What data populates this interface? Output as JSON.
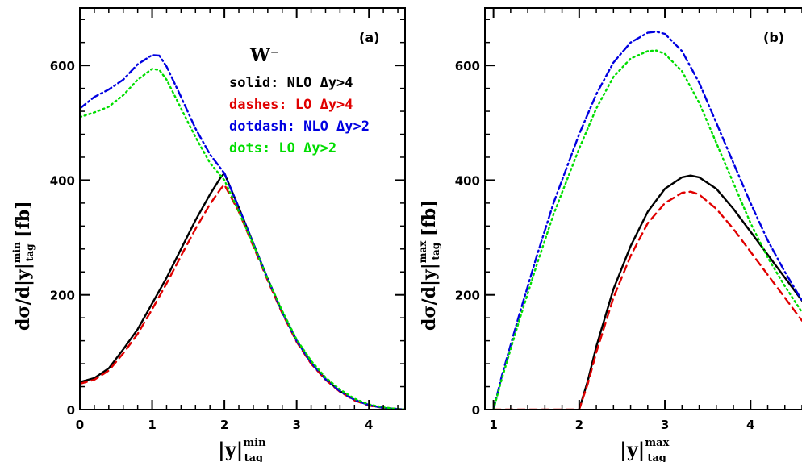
{
  "chart_data": [
    {
      "type": "line",
      "panel_tag": "(a)",
      "process_label": "W⁻",
      "xlabel": {
        "base": "|y|",
        "sup": "min",
        "sub": "tag"
      },
      "ylabel": {
        "prefix": "dσ/d|y|",
        "sup": "min",
        "sub": "tag",
        "suffix": " [fb]"
      },
      "xlim": [
        0,
        4.5
      ],
      "ylim": [
        0,
        700
      ],
      "xticks": [
        0,
        1,
        2,
        3,
        4
      ],
      "yticks": [
        0,
        200,
        400,
        600
      ],
      "legend": [
        {
          "text": "solid: NLO Δy>4",
          "color": "#000000"
        },
        {
          "text": "dashes: LO Δy>4",
          "color": "#e00000"
        },
        {
          "text": "dotdash: NLO Δy>2",
          "color": "#0000e0"
        },
        {
          "text": "dots: LO Δy>2",
          "color": "#00dd00"
        }
      ],
      "series": [
        {
          "color": "#000000",
          "dash": "none",
          "x": [
            0,
            0.2,
            0.4,
            0.6,
            0.8,
            1.0,
            1.2,
            1.4,
            1.6,
            1.8,
            1.95,
            2.0,
            2.2,
            2.4,
            2.6,
            2.8,
            3.0,
            3.2,
            3.4,
            3.6,
            3.8,
            4.0,
            4.2,
            4.4,
            4.5
          ],
          "y": [
            48,
            55,
            72,
            105,
            140,
            185,
            230,
            280,
            330,
            375,
            405,
            412,
            352,
            290,
            228,
            170,
            120,
            82,
            53,
            32,
            17,
            8,
            3,
            1,
            0
          ]
        },
        {
          "color": "#e00000",
          "dash": "9,6",
          "x": [
            0,
            0.2,
            0.4,
            0.6,
            0.8,
            1.0,
            1.2,
            1.4,
            1.6,
            1.8,
            1.95,
            2.0,
            2.2,
            2.4,
            2.6,
            2.8,
            3.0,
            3.2,
            3.4,
            3.6,
            3.8,
            4.0,
            4.2,
            4.4,
            4.5
          ],
          "y": [
            45,
            52,
            68,
            98,
            132,
            175,
            220,
            268,
            315,
            358,
            385,
            392,
            345,
            285,
            225,
            168,
            118,
            80,
            52,
            31,
            16,
            7,
            3,
            1,
            0
          ]
        },
        {
          "color": "#0000e0",
          "dash": "9,4,2,4",
          "x": [
            0,
            0.2,
            0.4,
            0.6,
            0.8,
            1.0,
            1.1,
            1.2,
            1.4,
            1.6,
            1.8,
            2.0,
            2.2,
            2.4,
            2.6,
            2.8,
            3.0,
            3.2,
            3.4,
            3.6,
            3.8,
            4.0,
            4.2,
            4.4,
            4.5
          ],
          "y": [
            525,
            545,
            558,
            575,
            602,
            618,
            617,
            598,
            545,
            490,
            445,
            412,
            352,
            290,
            228,
            170,
            120,
            82,
            53,
            32,
            17,
            8,
            3,
            1,
            0
          ]
        },
        {
          "color": "#00dd00",
          "dash": "2,4",
          "x": [
            0,
            0.2,
            0.4,
            0.6,
            0.8,
            1.0,
            1.1,
            1.2,
            1.4,
            1.6,
            1.8,
            2.0,
            2.2,
            2.4,
            2.6,
            2.8,
            3.0,
            3.2,
            3.4,
            3.6,
            3.8,
            4.0,
            4.2,
            4.4,
            4.5
          ],
          "y": [
            510,
            518,
            528,
            548,
            575,
            594,
            592,
            575,
            525,
            475,
            430,
            400,
            345,
            288,
            228,
            172,
            122,
            85,
            56,
            35,
            19,
            9,
            4,
            1,
            0
          ]
        }
      ]
    },
    {
      "type": "line",
      "panel_tag": "(b)",
      "xlabel": {
        "base": "|y|",
        "sup": "max",
        "sub": "tag"
      },
      "ylabel": {
        "prefix": "dσ/d|y|",
        "sup": "max",
        "sub": "tag",
        "suffix": " [fb]"
      },
      "xlim": [
        0.9,
        4.6
      ],
      "ylim": [
        0,
        700
      ],
      "xticks": [
        1,
        2,
        3,
        4
      ],
      "yticks": [
        0,
        200,
        400,
        600
      ],
      "series": [
        {
          "color": "#000000",
          "dash": "none",
          "x": [
            2.0,
            2.1,
            2.2,
            2.4,
            2.6,
            2.8,
            3.0,
            3.2,
            3.3,
            3.4,
            3.6,
            3.8,
            4.0,
            4.2,
            4.4,
            4.6
          ],
          "y": [
            0,
            50,
            110,
            210,
            285,
            345,
            385,
            405,
            408,
            405,
            385,
            350,
            310,
            270,
            230,
            190
          ]
        },
        {
          "color": "#e00000",
          "dash": "9,6",
          "x": [
            1.0,
            1.5,
            2.0,
            2.1,
            2.2,
            2.4,
            2.6,
            2.8,
            3.0,
            3.2,
            3.3,
            3.4,
            3.6,
            3.8,
            4.0,
            4.2,
            4.4,
            4.6
          ],
          "y": [
            0,
            0,
            0,
            45,
            100,
            195,
            268,
            325,
            360,
            378,
            380,
            375,
            350,
            315,
            275,
            235,
            195,
            155
          ]
        },
        {
          "color": "#0000e0",
          "dash": "9,4,2,4",
          "x": [
            1.0,
            1.1,
            1.3,
            1.5,
            1.7,
            2.0,
            2.2,
            2.4,
            2.6,
            2.8,
            2.9,
            3.0,
            3.2,
            3.4,
            3.6,
            3.8,
            4.0,
            4.2,
            4.4,
            4.6
          ],
          "y": [
            0,
            60,
            165,
            265,
            360,
            480,
            550,
            605,
            640,
            657,
            659,
            655,
            625,
            570,
            500,
            430,
            360,
            295,
            240,
            190
          ]
        },
        {
          "color": "#00dd00",
          "dash": "2,4",
          "x": [
            1.0,
            1.1,
            1.3,
            1.5,
            1.7,
            2.0,
            2.2,
            2.4,
            2.6,
            2.8,
            2.9,
            3.0,
            3.2,
            3.4,
            3.6,
            3.8,
            4.0,
            4.2,
            4.4,
            4.6
          ],
          "y": [
            0,
            55,
            155,
            250,
            340,
            455,
            525,
            580,
            612,
            625,
            626,
            620,
            590,
            535,
            465,
            395,
            325,
            265,
            215,
            170
          ]
        }
      ]
    }
  ]
}
